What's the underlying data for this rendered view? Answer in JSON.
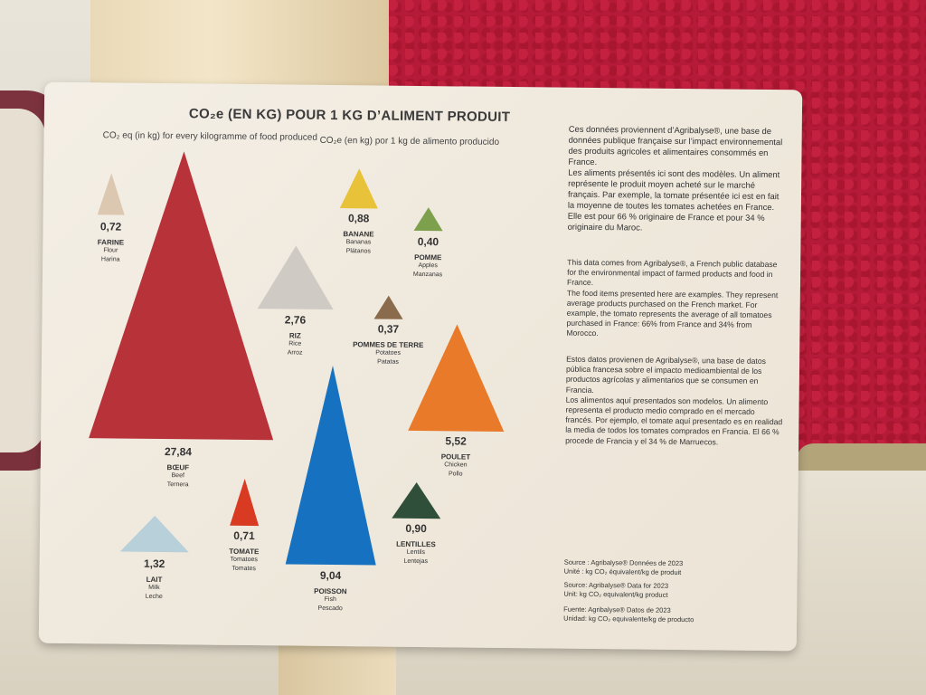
{
  "title": "CO₂e (EN KG) POUR 1 KG D’ALIMENT PRODUIT",
  "subtitle_en": "CO₂ eq (in kg) for every kilogramme of food produced",
  "subtitle_es": "CO₂e (en kg) por 1 kg de alimento producido",
  "foods": [
    {
      "value": "0,72",
      "fr": "FARINE",
      "en": "Flour",
      "es": "Harina",
      "color": "#dcc8b0"
    },
    {
      "value": "27,84",
      "fr": "BŒUF",
      "en": "Beef",
      "es": "Ternera",
      "color": "#b8323a"
    },
    {
      "value": "2,76",
      "fr": "RIZ",
      "en": "Rice",
      "es": "Arroz",
      "color": "#cfcbc4"
    },
    {
      "value": "0,88",
      "fr": "BANANE",
      "en": "Bananas",
      "es": "Plátanos",
      "color": "#e8c238"
    },
    {
      "value": "0,40",
      "fr": "POMME",
      "en": "Apples",
      "es": "Manzanas",
      "color": "#7ca04c"
    },
    {
      "value": "0,37",
      "fr": "POMMES DE TERRE",
      "en": "Potatoes",
      "es": "Patatas",
      "color": "#8a6b4c"
    },
    {
      "value": "5,52",
      "fr": "POULET",
      "en": "Chicken",
      "es": "Pollo",
      "color": "#e87a2a"
    },
    {
      "value": "9,04",
      "fr": "POISSON",
      "en": "Fish",
      "es": "Pescado",
      "color": "#1672c0"
    },
    {
      "value": "0,90",
      "fr": "LENTILLES",
      "en": "Lentils",
      "es": "Lentejas",
      "color": "#2f4f3a"
    },
    {
      "value": "0,71",
      "fr": "TOMATE",
      "en": "Tomatoes",
      "es": "Tomates",
      "color": "#d83a22"
    },
    {
      "value": "1,32",
      "fr": "LAIT",
      "en": "Milk",
      "es": "Leche",
      "color": "#b8d0da"
    }
  ],
  "text_fr": "Ces données proviennent d’Agribalyse®, une base de données publique française sur l’impact environnemental des produits agricoles et alimentaires consommés en France.\n      Les aliments présentés ici sont des modèles. Un aliment représente le produit moyen acheté sur le marché français. Par exemple, la tomate présentée ici est en fait la moyenne de toutes les tomates achetées en France. Elle est pour 66 % originaire de France et pour 34 % originaire du Maroc.",
  "text_en": "This data comes from Agribalyse®, a French public database for the environmental impact of farmed products and food in France.\n      The food items presented here are examples. They represent average products purchased on the French market. For example, the tomato represents the average of all tomatoes purchased in France: 66% from France and 34% from Morocco.",
  "text_es": "Estos datos provienen de Agribalyse®, una base de datos pública francesa sobre el impacto medioambiental de los productos agrícolas y alimentarios que se consumen en Francia.\n      Los alimentos aquí presentados son modelos. Un alimento representa el producto medio comprado en el mercado francés. Por ejemplo, el tomate aquí presentado es en realidad la media de todos los tomates comprados en Francia. El 66 % procede de Francia y el 34 % de Marruecos.",
  "source_fr": "Source : Agribalyse®    Données de 2023\nUnité : kg CO₂ équivalent/kg de produit",
  "source_en": "Source: Agribalyse®    Data for 2023\nUnit: kg CO₂ equivalent/kg product",
  "source_es": "Fuente: Agribalyse®    Datos de 2023\nUnidad: kg CO₂ equivalente/kg de producto"
}
